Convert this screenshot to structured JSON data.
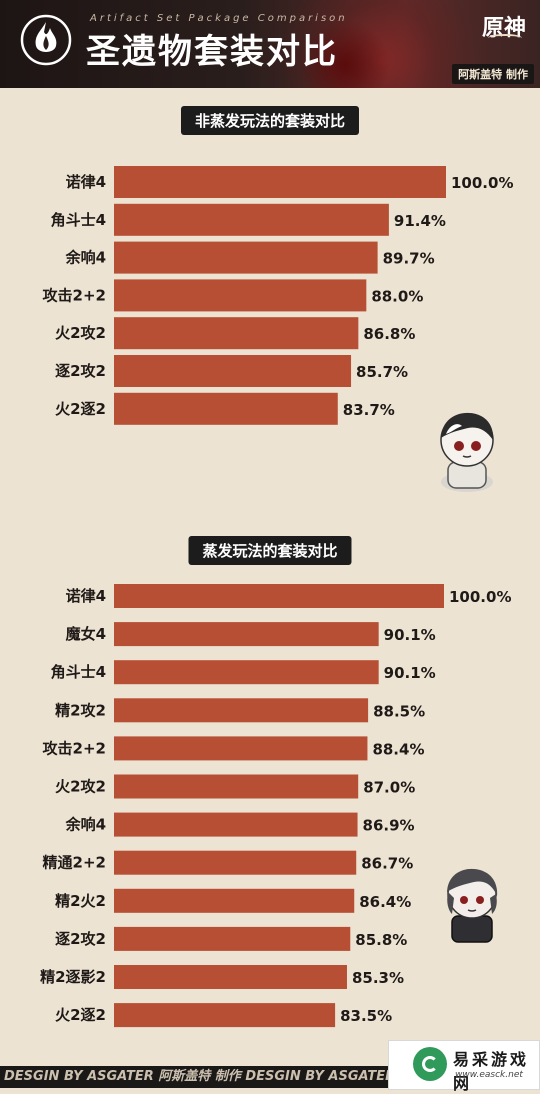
{
  "header": {
    "subtitle": "Artifact Set Package Comparison",
    "title": "圣遗物套装对比",
    "brand": "原神",
    "author": "阿斯盖特 制作"
  },
  "colors": {
    "bar": "#b64f33",
    "background": "#ece3d3",
    "title_bg": "#1c1c1c"
  },
  "chart_data": [
    {
      "type": "bar",
      "orientation": "horizontal",
      "title": "非蒸发玩法的套装对比",
      "categories": [
        "诺律4",
        "角斗士4",
        "余响4",
        "攻击2+2",
        "火2攻2",
        "逐2攻2",
        "火2逐2"
      ],
      "values": [
        100.0,
        91.4,
        89.7,
        88.0,
        86.8,
        85.7,
        83.7
      ],
      "value_labels": [
        "100.0%",
        "91.4%",
        "89.7%",
        "88.0%",
        "86.8%",
        "85.7%",
        "83.7%"
      ],
      "xlim": [
        0,
        100
      ]
    },
    {
      "type": "bar",
      "orientation": "horizontal",
      "title": "蒸发玩法的套装对比",
      "categories": [
        "诺律4",
        "魔女4",
        "角斗士4",
        "精2攻2",
        "攻击2+2",
        "火2攻2",
        "余响4",
        "精通2+2",
        "精2火2",
        "逐2攻2",
        "精2逐影2",
        "火2逐2"
      ],
      "values": [
        100.0,
        90.1,
        90.1,
        88.5,
        88.4,
        87.0,
        86.9,
        86.7,
        86.4,
        85.8,
        85.3,
        83.5
      ],
      "value_labels": [
        "100.0%",
        "90.1%",
        "90.1%",
        "88.5%",
        "88.4%",
        "87.0%",
        "86.9%",
        "86.7%",
        "86.4%",
        "85.8%",
        "85.3%",
        "83.5%"
      ],
      "xlim": [
        0,
        100
      ]
    }
  ],
  "footer": {
    "text": "DESGIN BY ASGATER   阿斯盖特 制作   DESGIN BY ASGATER"
  },
  "watermark": {
    "text": "易采游戏网",
    "url": "www.easck.net"
  }
}
